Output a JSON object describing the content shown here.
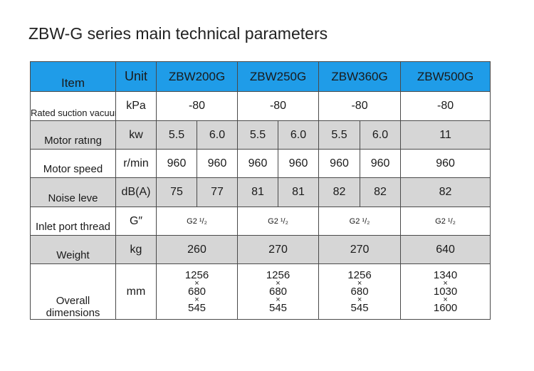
{
  "title": "ZBW-G series main technical parameters",
  "colors": {
    "header": "#1f9ce8",
    "shaded_row": "#d6d6d6",
    "border": "#4a4a4a"
  },
  "header": {
    "item": "Item",
    "unit": "Unit",
    "models": [
      "ZBW200G",
      "ZBW250G",
      "ZBW360G",
      "ZBW500G"
    ]
  },
  "rows": {
    "suction": {
      "label": "Rated suction vacuum",
      "unit": "kPa",
      "values": [
        "-80",
        "-80",
        "-80",
        "-80"
      ]
    },
    "motor_rating": {
      "label": "Motor ratıng",
      "unit": "kw",
      "values": [
        "5.5",
        "6.0",
        "5.5",
        "6.0",
        "5.5",
        "6.0",
        "11"
      ]
    },
    "motor_speed": {
      "label": "Motor speed",
      "unit": "r/min",
      "values": [
        "960",
        "960",
        "960",
        "960",
        "960",
        "960",
        "960"
      ]
    },
    "noise": {
      "label": "Noise leve",
      "unit": "dB(A)",
      "values": [
        "75",
        "77",
        "81",
        "81",
        "82",
        "82",
        "82"
      ]
    },
    "inlet": {
      "label": "Inlet port thread",
      "unit": "G″",
      "values": [
        "G2 ¹/₂",
        "G2 ¹/₂",
        "G2 ¹/₂",
        "G2 ¹/₂"
      ]
    },
    "weight": {
      "label": "Weight",
      "unit": "kg",
      "values": [
        "260",
        "270",
        "270",
        "640"
      ]
    },
    "dimensions": {
      "label": "Overall dimensions",
      "unit": "mm",
      "separator": "×",
      "values": [
        [
          "1256",
          "680",
          "545"
        ],
        [
          "1256",
          "680",
          "545"
        ],
        [
          "1256",
          "680",
          "545"
        ],
        [
          "1340",
          "1030",
          "1600"
        ]
      ]
    }
  }
}
